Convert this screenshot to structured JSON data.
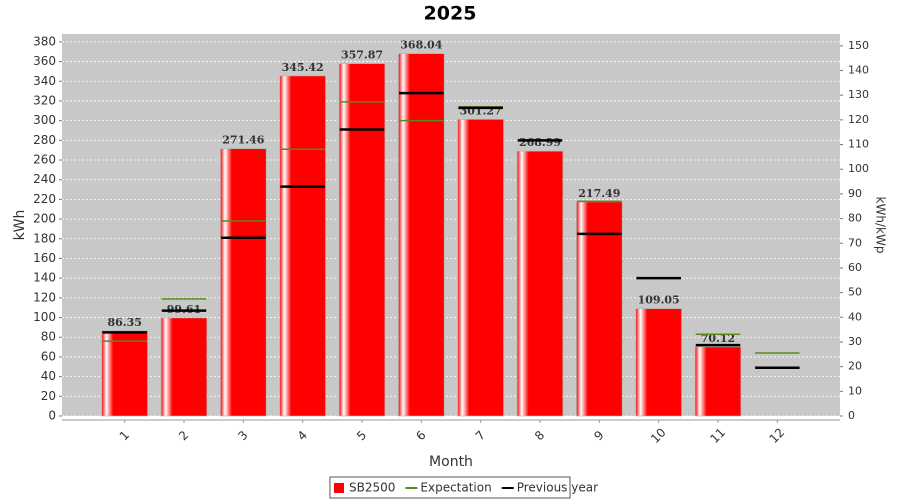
{
  "chart_data": {
    "type": "bar",
    "title": "2025",
    "x_label": "Month",
    "y_label": "kWh",
    "y2_label": "kWh/kWp",
    "categories": [
      "1",
      "2",
      "3",
      "4",
      "5",
      "6",
      "7",
      "8",
      "9",
      "10",
      "11",
      "12"
    ],
    "series": [
      {
        "name": "SB2500",
        "color": "#ff0000",
        "style": "bar",
        "values": [
          86.35,
          99.61,
          271.46,
          345.42,
          357.87,
          368.04,
          301.27,
          268.99,
          217.49,
          109.05,
          70.12,
          null
        ]
      },
      {
        "name": "Expectation",
        "color": "#5a8a1a",
        "style": "level",
        "values": [
          76,
          119,
          198,
          271,
          319,
          300,
          314,
          280,
          218,
          140,
          83,
          64
        ]
      },
      {
        "name": "Previous year",
        "color": "#000000",
        "style": "level",
        "values": [
          85,
          107,
          181,
          233,
          291,
          328,
          313,
          280,
          185,
          140,
          72,
          49
        ]
      }
    ],
    "ylim": [
      0,
      388
    ],
    "yticks": [
      0,
      20,
      40,
      60,
      80,
      100,
      120,
      140,
      160,
      180,
      200,
      220,
      240,
      260,
      280,
      300,
      320,
      340,
      360,
      380
    ],
    "y2lim": [
      0,
      154.8
    ],
    "y2ticks": [
      0,
      10,
      20,
      30,
      40,
      50,
      60,
      70,
      80,
      90,
      100,
      110,
      120,
      130,
      140,
      150
    ],
    "grid": true,
    "legend": "bottom"
  }
}
